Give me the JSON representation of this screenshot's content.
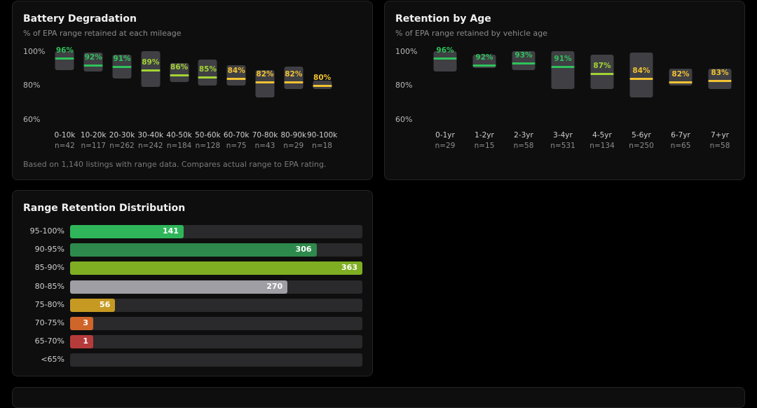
{
  "degradation": {
    "title": "Battery Degradation",
    "subtitle": "% of EPA range retained at each mileage",
    "yticks": [
      "100%",
      "80%",
      "60%"
    ],
    "footnote": "Based on 1,140 listings with range data. Compares actual range to EPA rating.",
    "columns": [
      {
        "label": "0-10k",
        "n": "n=42",
        "value_label": "96%",
        "median": 96,
        "low": 89,
        "high": 100,
        "color": "#2fc25b"
      },
      {
        "label": "10-20k",
        "n": "n=117",
        "value_label": "92%",
        "median": 92,
        "low": 88,
        "high": 99,
        "color": "#2fc25b"
      },
      {
        "label": "20-30k",
        "n": "n=262",
        "value_label": "91%",
        "median": 91,
        "low": 84,
        "high": 98,
        "color": "#2fc25b"
      },
      {
        "label": "30-40k",
        "n": "n=242",
        "value_label": "89%",
        "median": 89,
        "low": 79,
        "high": 100,
        "color": "#a3d334"
      },
      {
        "label": "40-50k",
        "n": "n=184",
        "value_label": "86%",
        "median": 86,
        "low": 82,
        "high": 93,
        "color": "#a3d334"
      },
      {
        "label": "50-60k",
        "n": "n=128",
        "value_label": "85%",
        "median": 85,
        "low": 80,
        "high": 95,
        "color": "#a3d334"
      },
      {
        "label": "60-70k",
        "n": "n=75",
        "value_label": "84%",
        "median": 84,
        "low": 80,
        "high": 92,
        "color": "#f1c232"
      },
      {
        "label": "70-80k",
        "n": "n=43",
        "value_label": "82%",
        "median": 82,
        "low": 73,
        "high": 89,
        "color": "#f1c232"
      },
      {
        "label": "80-90k",
        "n": "n=29",
        "value_label": "82%",
        "median": 82,
        "low": 78,
        "high": 91,
        "color": "#f1c232"
      },
      {
        "label": "90-100k",
        "n": "n=18",
        "value_label": "80%",
        "median": 80,
        "low": 78,
        "high": 83,
        "color": "#f1c232"
      }
    ]
  },
  "age": {
    "title": "Retention by Age",
    "subtitle": "% of EPA range retained by vehicle age",
    "yticks": [
      "100%",
      "80%",
      "60%"
    ],
    "columns": [
      {
        "label": "0-1yr",
        "n": "n=29",
        "value_label": "96%",
        "median": 96,
        "low": 88,
        "high": 100,
        "color": "#2fc25b"
      },
      {
        "label": "1-2yr",
        "n": "n=15",
        "value_label": "92%",
        "median": 92,
        "low": 90,
        "high": 98,
        "color": "#2fc25b"
      },
      {
        "label": "2-3yr",
        "n": "n=58",
        "value_label": "93%",
        "median": 93,
        "low": 89,
        "high": 100,
        "color": "#2fc25b"
      },
      {
        "label": "3-4yr",
        "n": "n=531",
        "value_label": "91%",
        "median": 91,
        "low": 78,
        "high": 100,
        "color": "#2fc25b"
      },
      {
        "label": "4-5yr",
        "n": "n=134",
        "value_label": "87%",
        "median": 87,
        "low": 78,
        "high": 98,
        "color": "#a3d334"
      },
      {
        "label": "5-6yr",
        "n": "n=250",
        "value_label": "84%",
        "median": 84,
        "low": 73,
        "high": 99,
        "color": "#f1c232"
      },
      {
        "label": "6-7yr",
        "n": "n=65",
        "value_label": "82%",
        "median": 82,
        "low": 80,
        "high": 90,
        "color": "#f1c232"
      },
      {
        "label": "7+yr",
        "n": "n=58",
        "value_label": "83%",
        "median": 83,
        "low": 78,
        "high": 90,
        "color": "#f1c232"
      }
    ]
  },
  "distribution": {
    "title": "Range Retention Distribution",
    "max": 363,
    "rows": [
      {
        "label": "95-100%",
        "count": "141",
        "value": 141,
        "color": "#2fb65a"
      },
      {
        "label": "90-95%",
        "count": "306",
        "value": 306,
        "color": "#2e8a4c"
      },
      {
        "label": "85-90%",
        "count": "363",
        "value": 363,
        "color": "#7fae22"
      },
      {
        "label": "80-85%",
        "count": "270",
        "value": 270,
        "color": "#9e9ea4"
      },
      {
        "label": "75-80%",
        "count": "56",
        "value": 56,
        "color": "#c69a22"
      },
      {
        "label": "70-75%",
        "count": "3",
        "value": 3,
        "color": "#d0652a"
      },
      {
        "label": "65-70%",
        "count": "1",
        "value": 1,
        "color": "#b53b3b"
      },
      {
        "label": "<65%",
        "count": "",
        "value": 0,
        "color": "#2a2a2c"
      }
    ]
  },
  "chart_data": [
    {
      "type": "bar",
      "title": "Battery Degradation",
      "subtitle": "% of EPA range retained at each mileage",
      "categories": [
        "0-10k",
        "10-20k",
        "20-30k",
        "30-40k",
        "40-50k",
        "50-60k",
        "60-70k",
        "70-80k",
        "80-90k",
        "90-100k"
      ],
      "series": [
        {
          "values": [
            96,
            92,
            91,
            89,
            86,
            85,
            84,
            82,
            82,
            80
          ]
        }
      ],
      "ylim": [
        60,
        100
      ]
    },
    {
      "type": "bar",
      "title": "Retention by Age",
      "subtitle": "% of EPA range retained by vehicle age",
      "categories": [
        "0-1yr",
        "1-2yr",
        "2-3yr",
        "3-4yr",
        "4-5yr",
        "5-6yr",
        "6-7yr",
        "7+yr"
      ],
      "series": [
        {
          "values": [
            96,
            92,
            93,
            91,
            87,
            84,
            82,
            83
          ]
        }
      ],
      "ylim": [
        60,
        100
      ]
    },
    {
      "type": "bar",
      "title": "Range Retention Distribution",
      "categories": [
        "95-100%",
        "90-95%",
        "85-90%",
        "80-85%",
        "75-80%",
        "70-75%",
        "65-70%",
        "<65%"
      ],
      "values": [
        141,
        306,
        363,
        270,
        56,
        3,
        1,
        0
      ]
    }
  ]
}
